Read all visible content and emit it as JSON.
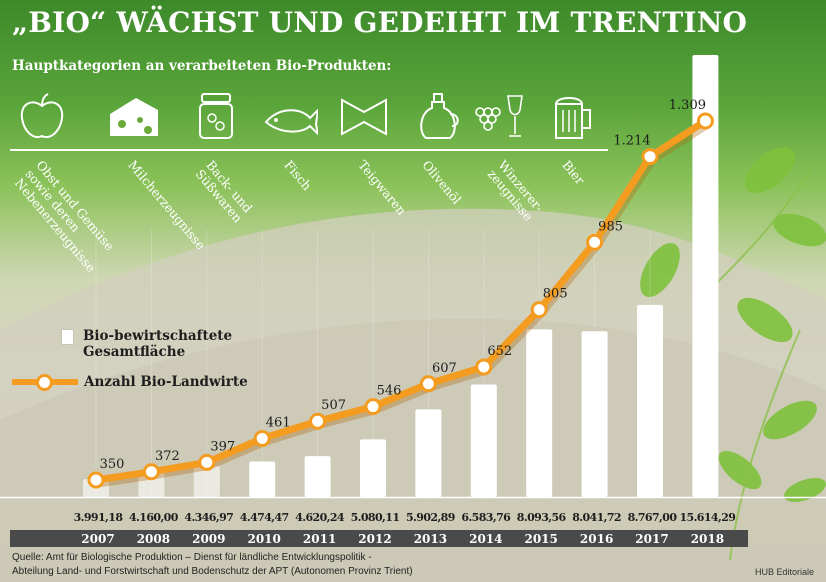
{
  "title": "„BIO“ WÄCHST UND GEDEIHT IM TRENTINO",
  "subtitle": "Hauptkategorien an verarbeiteten Bio-Produkten:",
  "categories": [
    {
      "label": "Obst und Gemüse\nsowie deren\nNebenerzeugnisse",
      "icon": "apple-icon"
    },
    {
      "label": "Milcherzeugnisse",
      "icon": "cheese-icon"
    },
    {
      "label": "Back- und\nSüßwaren",
      "icon": "jar-icon"
    },
    {
      "label": "Fisch",
      "icon": "fish-icon"
    },
    {
      "label": "Teigwaren",
      "icon": "pasta-icon"
    },
    {
      "label": "Olivenöl",
      "icon": "olive-oil-icon"
    },
    {
      "label": "Winzerer-\nzeugnisse",
      "icon": "grapes-wine-icon"
    },
    {
      "label": "Bier",
      "icon": "beer-icon"
    }
  ],
  "legend": {
    "area": "Bio-bewirtschaftete\nGesamtfläche",
    "farmers": "Anzahl Bio-Landwirte"
  },
  "chart_data": {
    "type": "bar+line",
    "categories": [
      "2007",
      "2008",
      "2009",
      "2010",
      "2011",
      "2012",
      "2013",
      "2014",
      "2015",
      "2016",
      "2017",
      "2018"
    ],
    "series": [
      {
        "name": "Bio-bewirtschaftete Gesamtfläche",
        "type": "bar",
        "values": [
          3991.18,
          4160.0,
          4346.97,
          4474.47,
          4620.24,
          5080.11,
          5902.89,
          6583.76,
          8093.56,
          8041.72,
          8767.0,
          15614.29
        ],
        "labels": [
          "3.991,18",
          "4.160,00",
          "4.346,97",
          "4.474,47",
          "4.620,24",
          "5.080,11",
          "5.902,89",
          "6.583,76",
          "8.093,56",
          "8.041,72",
          "8.767,00",
          "15.614,29"
        ]
      },
      {
        "name": "Anzahl Bio-Landwirte",
        "type": "line",
        "values": [
          350,
          372,
          397,
          461,
          507,
          546,
          607,
          652,
          805,
          985,
          1214,
          1309
        ],
        "labels": [
          "350",
          "372",
          "397",
          "461",
          "507",
          "546",
          "607",
          "652",
          "805",
          "985",
          "1.214",
          "1.309"
        ]
      }
    ]
  },
  "colors": {
    "line": "#f39c1f",
    "bars": "#ffffff",
    "year_band": "#4a4a4a"
  },
  "source": "Quelle: Amt für Biologische Produktion – Dienst für ländliche Entwicklungspolitik -\nAbteilung Land- und Forstwirtschaft und Bodenschutz der APT (Autonomen Provinz Trient)",
  "credit": "HUB Editoriale"
}
